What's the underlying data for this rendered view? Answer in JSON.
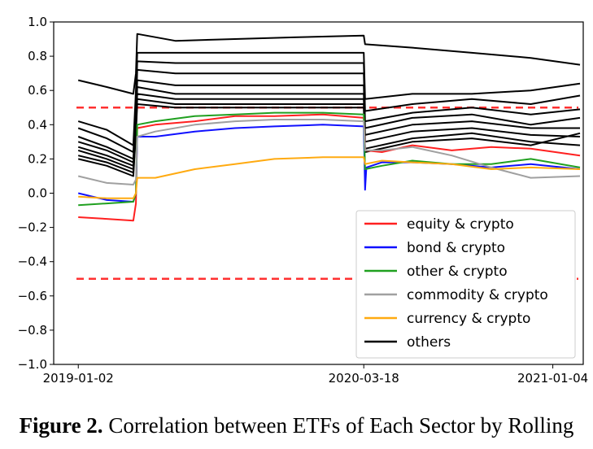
{
  "caption": {
    "label": "Figure 2.",
    "text": "Correlation between ETFs of Each Sector by Rolling"
  },
  "chart_data": {
    "type": "line",
    "title": "",
    "xlabel": "",
    "ylabel": "",
    "ylim": [
      -1.0,
      1.0
    ],
    "xlim": [
      "2018-11-25",
      "2021-02-20"
    ],
    "x_ticks": [
      "2019-01-02",
      "2020-03-18",
      "2021-01-04"
    ],
    "y_ticks": [
      "1.0",
      "0.8",
      "0.6",
      "0.4",
      "0.2",
      "0.0",
      "−0.2",
      "−0.4",
      "−0.6",
      "−0.8",
      "−1.0"
    ],
    "grid": false,
    "legend_position": "lower-right",
    "reference_lines": [
      {
        "y": 0.5,
        "color": "#ff3030",
        "style": "dashed"
      },
      {
        "y": -0.5,
        "color": "#ff3030",
        "style": "dashed"
      }
    ],
    "series": [
      {
        "name": "equity & crypto",
        "color": "#ff2020",
        "x": [
          "2019-01-02",
          "2019-02-15",
          "2019-03-28",
          "2019-04-01",
          "2019-04-03",
          "2019-05-01",
          "2019-07-01",
          "2019-09-01",
          "2019-11-01",
          "2020-01-15",
          "2020-03-18",
          "2020-03-20",
          "2020-04-15",
          "2020-06-01",
          "2020-08-01",
          "2020-10-01",
          "2020-12-01",
          "2021-02-15"
        ],
        "values": [
          -0.14,
          -0.15,
          -0.16,
          -0.06,
          0.38,
          0.4,
          0.42,
          0.45,
          0.45,
          0.46,
          0.44,
          0.25,
          0.24,
          0.28,
          0.25,
          0.27,
          0.26,
          0.22
        ]
      },
      {
        "name": "bond & crypto",
        "color": "#1010ff",
        "x": [
          "2019-01-02",
          "2019-02-15",
          "2019-03-28",
          "2019-04-01",
          "2019-04-03",
          "2019-05-01",
          "2019-07-01",
          "2019-09-01",
          "2019-11-01",
          "2020-01-15",
          "2020-03-18",
          "2020-03-20",
          "2020-03-22",
          "2020-04-15",
          "2020-06-01",
          "2020-08-01",
          "2020-10-01",
          "2020-12-01",
          "2021-02-15"
        ],
        "values": [
          0.0,
          -0.04,
          -0.05,
          0.0,
          0.33,
          0.33,
          0.36,
          0.38,
          0.39,
          0.4,
          0.39,
          0.02,
          0.15,
          0.18,
          0.18,
          0.17,
          0.15,
          0.17,
          0.14
        ]
      },
      {
        "name": "other & crypto",
        "color": "#20a020",
        "x": [
          "2019-01-02",
          "2019-02-15",
          "2019-03-28",
          "2019-04-01",
          "2019-04-03",
          "2019-05-01",
          "2019-07-01",
          "2019-09-01",
          "2019-11-01",
          "2020-01-15",
          "2020-03-18",
          "2020-03-20",
          "2020-04-15",
          "2020-06-01",
          "2020-08-01",
          "2020-10-01",
          "2020-12-01",
          "2021-02-15"
        ],
        "values": [
          -0.07,
          -0.06,
          -0.05,
          0.0,
          0.4,
          0.42,
          0.45,
          0.46,
          0.47,
          0.47,
          0.46,
          0.14,
          0.16,
          0.19,
          0.17,
          0.17,
          0.2,
          0.15
        ]
      },
      {
        "name": "commodity & crypto",
        "color": "#a0a0a0",
        "x": [
          "2019-01-02",
          "2019-02-15",
          "2019-03-28",
          "2019-04-01",
          "2019-04-03",
          "2019-05-01",
          "2019-07-01",
          "2019-09-01",
          "2019-11-01",
          "2020-01-15",
          "2020-03-18",
          "2020-03-20",
          "2020-04-15",
          "2020-06-01",
          "2020-08-01",
          "2020-10-01",
          "2020-12-01",
          "2021-02-15"
        ],
        "values": [
          0.1,
          0.06,
          0.05,
          0.08,
          0.33,
          0.36,
          0.4,
          0.42,
          0.43,
          0.43,
          0.42,
          0.25,
          0.25,
          0.27,
          0.22,
          0.15,
          0.09,
          0.1
        ]
      },
      {
        "name": "currency & crypto",
        "color": "#ffaa10",
        "x": [
          "2019-01-02",
          "2019-02-15",
          "2019-03-28",
          "2019-04-01",
          "2019-04-03",
          "2019-05-01",
          "2019-07-01",
          "2019-09-01",
          "2019-11-01",
          "2020-01-15",
          "2020-03-18",
          "2020-03-20",
          "2020-04-15",
          "2020-06-01",
          "2020-08-01",
          "2020-10-01",
          "2020-12-01",
          "2021-02-15"
        ],
        "values": [
          -0.02,
          -0.03,
          -0.03,
          0.0,
          0.09,
          0.09,
          0.14,
          0.17,
          0.2,
          0.21,
          0.21,
          0.17,
          0.19,
          0.18,
          0.17,
          0.14,
          0.15,
          0.14
        ]
      },
      {
        "name": "others",
        "color": "#000000",
        "x": [
          "2019-01-02",
          "2019-02-15",
          "2019-03-28",
          "2019-04-01",
          "2019-04-03",
          "2019-06-01",
          "2019-09-01",
          "2019-12-01",
          "2020-03-18",
          "2020-03-20",
          "2020-06-01",
          "2020-09-01",
          "2020-12-01",
          "2021-02-15"
        ],
        "values": [
          0.66,
          0.62,
          0.58,
          0.7,
          0.93,
          0.89,
          0.9,
          0.91,
          0.92,
          0.87,
          0.85,
          0.82,
          0.79,
          0.75
        ]
      },
      {
        "name": "",
        "color": "#000000",
        "x": [
          "2019-01-02",
          "2019-02-15",
          "2019-03-28",
          "2019-04-01",
          "2019-04-03",
          "2019-06-01",
          "2019-09-01",
          "2019-12-01",
          "2020-03-18",
          "2020-03-20",
          "2020-06-01",
          "2020-09-01",
          "2020-12-01",
          "2021-02-15"
        ],
        "values": [
          0.42,
          0.37,
          0.28,
          0.6,
          0.82,
          0.82,
          0.82,
          0.82,
          0.82,
          0.55,
          0.58,
          0.58,
          0.6,
          0.64
        ]
      },
      {
        "name": "",
        "color": "#000000",
        "x": [
          "2019-01-02",
          "2019-02-15",
          "2019-03-28",
          "2019-04-01",
          "2019-04-03",
          "2019-06-01",
          "2019-09-01",
          "2019-12-01",
          "2020-03-18",
          "2020-03-20",
          "2020-06-01",
          "2020-09-01",
          "2020-12-01",
          "2021-02-15"
        ],
        "values": [
          0.38,
          0.32,
          0.24,
          0.52,
          0.77,
          0.76,
          0.76,
          0.76,
          0.76,
          0.48,
          0.52,
          0.55,
          0.52,
          0.57
        ]
      },
      {
        "name": "",
        "color": "#000000",
        "x": [
          "2019-01-02",
          "2019-02-15",
          "2019-03-28",
          "2019-04-01",
          "2019-04-03",
          "2019-06-01",
          "2019-09-01",
          "2019-12-01",
          "2020-03-18",
          "2020-03-20",
          "2020-06-01",
          "2020-09-01",
          "2020-12-01",
          "2021-02-15"
        ],
        "values": [
          0.33,
          0.27,
          0.2,
          0.48,
          0.72,
          0.7,
          0.7,
          0.7,
          0.7,
          0.42,
          0.47,
          0.5,
          0.46,
          0.49
        ]
      },
      {
        "name": "",
        "color": "#000000",
        "x": [
          "2019-01-02",
          "2019-02-15",
          "2019-03-28",
          "2019-04-01",
          "2019-04-03",
          "2019-06-01",
          "2019-09-01",
          "2019-12-01",
          "2020-03-18",
          "2020-03-20",
          "2020-06-01",
          "2020-09-01",
          "2020-12-01",
          "2021-02-15"
        ],
        "values": [
          0.3,
          0.25,
          0.18,
          0.44,
          0.66,
          0.63,
          0.63,
          0.63,
          0.63,
          0.38,
          0.44,
          0.46,
          0.4,
          0.44
        ]
      },
      {
        "name": "",
        "color": "#000000",
        "x": [
          "2019-01-02",
          "2019-02-15",
          "2019-03-28",
          "2019-04-01",
          "2019-04-03",
          "2019-06-01",
          "2019-09-01",
          "2019-12-01",
          "2020-03-18",
          "2020-03-20",
          "2020-06-01",
          "2020-09-01",
          "2020-12-01",
          "2021-02-15"
        ],
        "values": [
          0.27,
          0.22,
          0.16,
          0.4,
          0.62,
          0.58,
          0.58,
          0.58,
          0.58,
          0.34,
          0.4,
          0.42,
          0.38,
          0.38
        ]
      },
      {
        "name": "",
        "color": "#000000",
        "x": [
          "2019-01-02",
          "2019-02-15",
          "2019-03-28",
          "2019-04-01",
          "2019-04-03",
          "2019-06-01",
          "2019-09-01",
          "2019-12-01",
          "2020-03-18",
          "2020-03-20",
          "2020-06-01",
          "2020-09-01",
          "2020-12-01",
          "2021-02-15"
        ],
        "values": [
          0.25,
          0.2,
          0.14,
          0.38,
          0.58,
          0.55,
          0.55,
          0.55,
          0.55,
          0.3,
          0.36,
          0.38,
          0.34,
          0.33
        ]
      },
      {
        "name": "",
        "color": "#000000",
        "x": [
          "2019-01-02",
          "2019-02-15",
          "2019-03-28",
          "2019-04-01",
          "2019-04-03",
          "2019-06-01",
          "2019-09-01",
          "2019-12-01",
          "2020-03-18",
          "2020-03-20",
          "2020-06-01",
          "2020-09-01",
          "2020-12-01",
          "2021-02-15"
        ],
        "values": [
          0.22,
          0.18,
          0.12,
          0.36,
          0.55,
          0.52,
          0.52,
          0.52,
          0.52,
          0.26,
          0.32,
          0.35,
          0.3,
          0.28
        ]
      },
      {
        "name": "",
        "color": "#000000",
        "x": [
          "2019-01-02",
          "2019-02-15",
          "2019-03-28",
          "2019-04-01",
          "2019-04-03",
          "2019-06-01",
          "2019-09-01",
          "2019-12-01",
          "2020-03-18",
          "2020-03-20",
          "2020-06-01",
          "2020-09-01",
          "2020-12-01",
          "2021-02-15"
        ],
        "values": [
          0.2,
          0.16,
          0.1,
          0.35,
          0.52,
          0.5,
          0.5,
          0.5,
          0.5,
          0.24,
          0.3,
          0.32,
          0.28,
          0.35
        ]
      }
    ]
  }
}
